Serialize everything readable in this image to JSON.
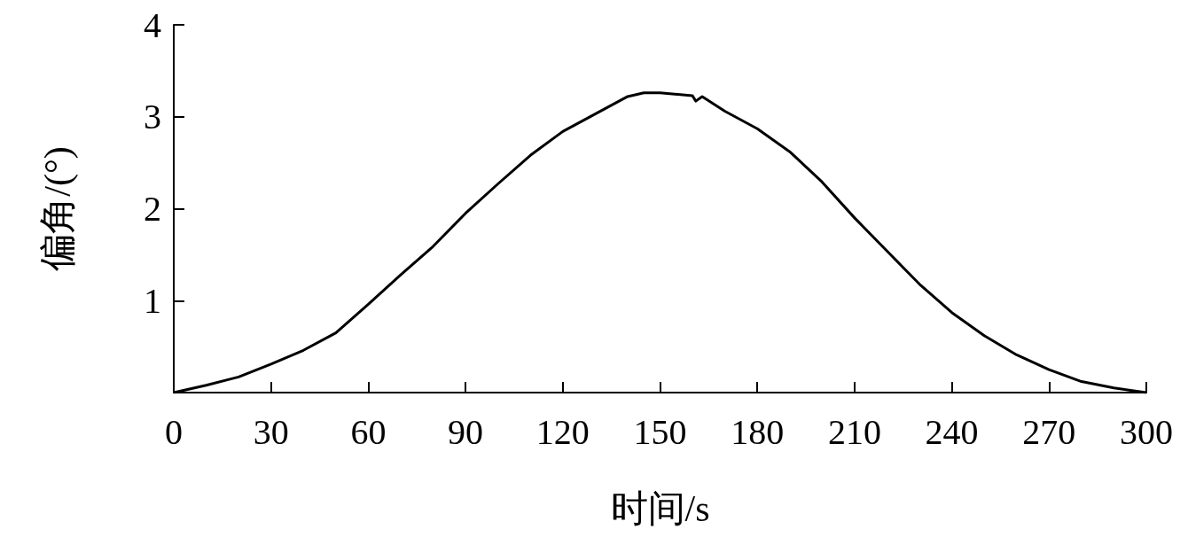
{
  "chart_data": {
    "type": "line",
    "xlabel": "时间/s",
    "ylabel": "偏角/(°)",
    "x": [
      0,
      10,
      20,
      30,
      40,
      50,
      60,
      70,
      80,
      90,
      100,
      110,
      120,
      130,
      140,
      145,
      150,
      160,
      161,
      163,
      170,
      180,
      190,
      200,
      210,
      220,
      230,
      240,
      250,
      260,
      270,
      280,
      290,
      300
    ],
    "series": [
      {
        "color": "#000000",
        "values": [
          0,
          0.08,
          0.17,
          0.31,
          0.46,
          0.65,
          0.96,
          1.28,
          1.59,
          1.95,
          2.27,
          2.58,
          2.84,
          3.03,
          3.22,
          3.26,
          3.26,
          3.23,
          3.17,
          3.22,
          3.06,
          2.87,
          2.62,
          2.29,
          1.9,
          1.54,
          1.18,
          0.87,
          0.62,
          0.41,
          0.25,
          0.12,
          0.05,
          0
        ]
      }
    ],
    "xlim": [
      0,
      300
    ],
    "xticks": [
      0,
      30,
      60,
      90,
      120,
      150,
      180,
      210,
      240,
      270,
      300
    ],
    "ylim": [
      0,
      4
    ],
    "yticks": [
      {
        "value": 0,
        "label": null
      },
      1,
      2,
      3,
      4
    ],
    "grid": false,
    "marker": "none",
    "line_style": "solid"
  }
}
